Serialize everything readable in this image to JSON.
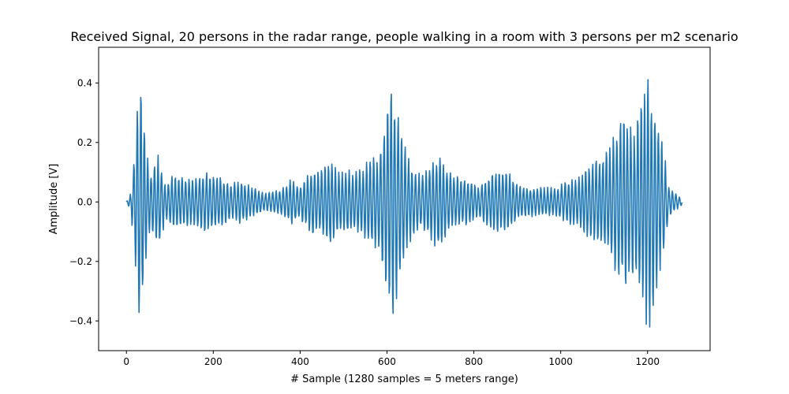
{
  "chart_data": {
    "type": "line",
    "title": "Received Signal, 20 persons in the radar range, people walking in a room with 3 persons per m2 scenario",
    "xlabel": "# Sample (1280 samples = 5 meters range)",
    "ylabel": "Amplitude [V]",
    "xlim": [
      -64,
      1344
    ],
    "ylim": [
      -0.5,
      0.52
    ],
    "xticks": [
      0,
      200,
      400,
      600,
      800,
      1000,
      1200
    ],
    "xtick_labels": [
      "0",
      "200",
      "400",
      "600",
      "800",
      "1000",
      "1200"
    ],
    "yticks": [
      -0.4,
      -0.2,
      0.0,
      0.2,
      0.4
    ],
    "ytick_labels": [
      "−0.4",
      "−0.2",
      "0.0",
      "0.2",
      "0.4"
    ],
    "grid": false,
    "series": [
      {
        "color": "#1f77b4",
        "n_samples": 1280,
        "carrier_period_samples": 8,
        "envelope": [
          [
            0,
            0.0
          ],
          [
            10,
            0.03
          ],
          [
            20,
            0.2
          ],
          [
            30,
            0.46
          ],
          [
            38,
            0.36
          ],
          [
            45,
            0.2
          ],
          [
            55,
            0.1
          ],
          [
            75,
            0.17
          ],
          [
            90,
            0.06
          ],
          [
            105,
            0.09
          ],
          [
            130,
            0.09
          ],
          [
            160,
            0.08
          ],
          [
            180,
            0.11
          ],
          [
            215,
            0.09
          ],
          [
            240,
            0.06
          ],
          [
            260,
            0.08
          ],
          [
            290,
            0.05
          ],
          [
            320,
            0.03
          ],
          [
            350,
            0.04
          ],
          [
            380,
            0.08
          ],
          [
            400,
            0.06
          ],
          [
            430,
            0.12
          ],
          [
            450,
            0.11
          ],
          [
            470,
            0.16
          ],
          [
            490,
            0.1
          ],
          [
            510,
            0.11
          ],
          [
            540,
            0.11
          ],
          [
            560,
            0.15
          ],
          [
            580,
            0.16
          ],
          [
            600,
            0.32
          ],
          [
            612,
            0.44
          ],
          [
            625,
            0.33
          ],
          [
            645,
            0.17
          ],
          [
            660,
            0.12
          ],
          [
            680,
            0.09
          ],
          [
            700,
            0.13
          ],
          [
            720,
            0.17
          ],
          [
            740,
            0.11
          ],
          [
            760,
            0.09
          ],
          [
            790,
            0.08
          ],
          [
            810,
            0.05
          ],
          [
            830,
            0.09
          ],
          [
            860,
            0.11
          ],
          [
            880,
            0.11
          ],
          [
            900,
            0.06
          ],
          [
            930,
            0.05
          ],
          [
            960,
            0.05
          ],
          [
            990,
            0.05
          ],
          [
            1010,
            0.07
          ],
          [
            1040,
            0.09
          ],
          [
            1070,
            0.14
          ],
          [
            1090,
            0.16
          ],
          [
            1110,
            0.18
          ],
          [
            1130,
            0.27
          ],
          [
            1150,
            0.3
          ],
          [
            1170,
            0.24
          ],
          [
            1190,
            0.39
          ],
          [
            1200,
            0.48
          ],
          [
            1210,
            0.38
          ],
          [
            1220,
            0.3
          ],
          [
            1235,
            0.2
          ],
          [
            1250,
            0.05
          ],
          [
            1265,
            0.03
          ],
          [
            1280,
            0.01
          ]
        ]
      }
    ]
  }
}
